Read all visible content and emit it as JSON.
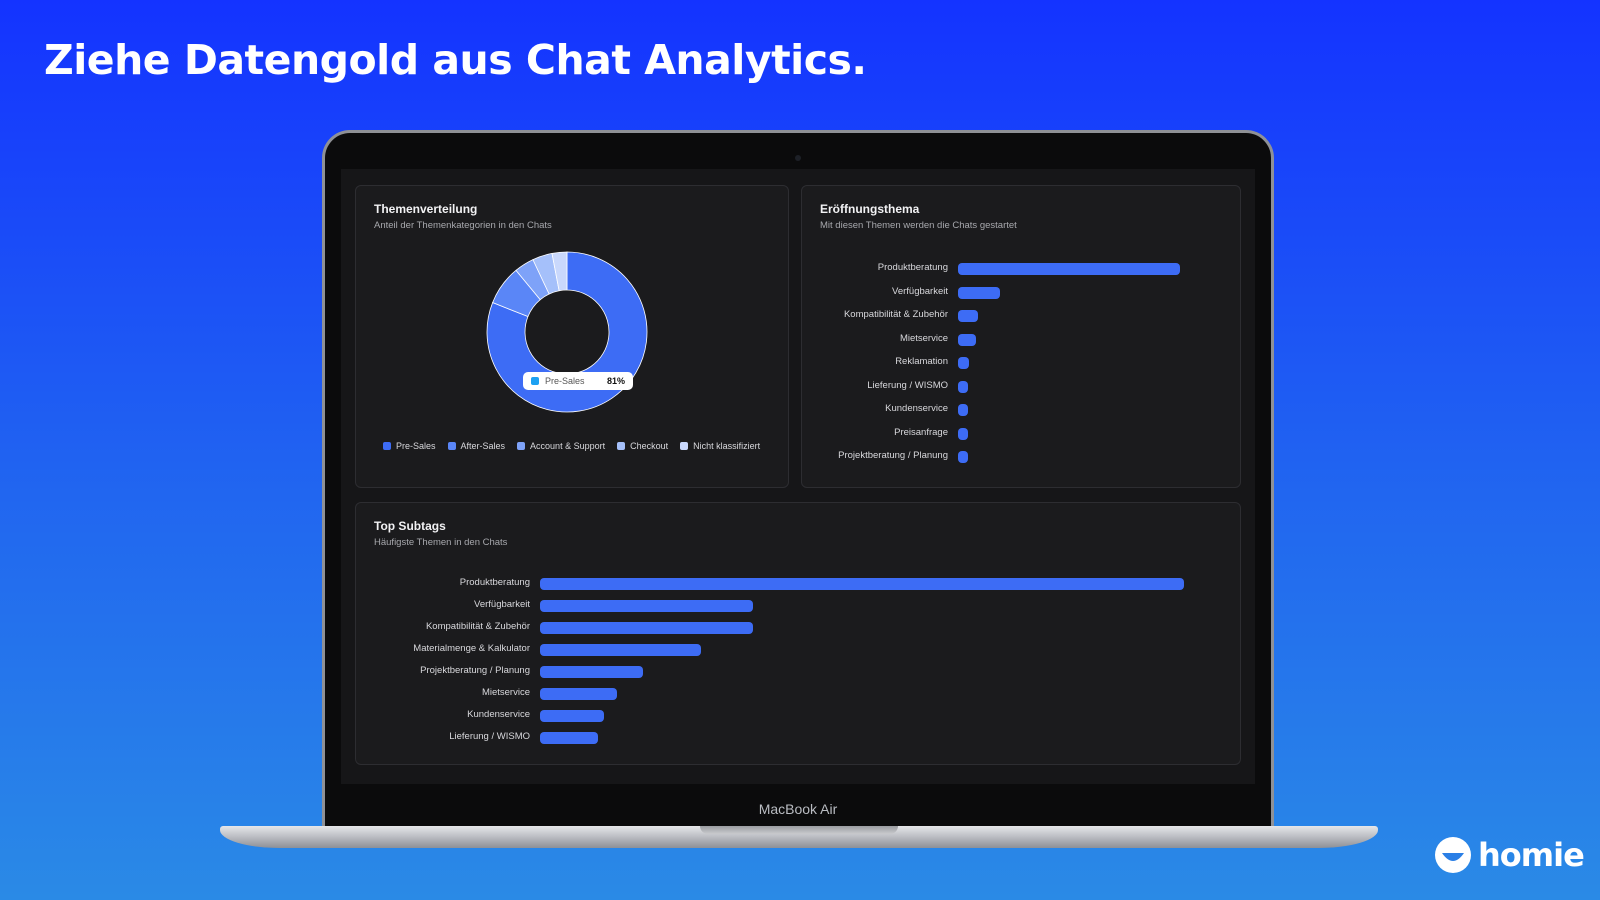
{
  "headline": "Ziehe Datengold aus Chat Analytics.",
  "device_label": "MacBook Air",
  "brand": "homie",
  "colors": {
    "bar": "#3d6cf5",
    "panel": "#1b1b1d",
    "tooltip_swatch": "#1da1f2"
  },
  "themen": {
    "title": "Themenverteilung",
    "subtitle": "Anteil der Themenkategorien in den Chats",
    "tooltip": {
      "label": "Pre-Sales",
      "value": "81%"
    },
    "legend": [
      {
        "label": "Pre-Sales",
        "color": "#3d6cf5"
      },
      {
        "label": "After-Sales",
        "color": "#5a86f7"
      },
      {
        "label": "Account & Support",
        "color": "#7ea2f8"
      },
      {
        "label": "Checkout",
        "color": "#a5c0fa"
      },
      {
        "label": "Nicht klassifiziert",
        "color": "#c9d8fc"
      }
    ]
  },
  "eroeffnung": {
    "title": "Eröffnungsthema",
    "subtitle": "Mit diesen Themen werden die Chats gestartet"
  },
  "subtags": {
    "title": "Top Subtags",
    "subtitle": "Häufigste Themen in den Chats"
  },
  "chart_data": [
    {
      "type": "pie",
      "categories": [
        "Pre-Sales",
        "After-Sales",
        "Account & Support",
        "Checkout",
        "Nicht klassifiziert"
      ],
      "values": [
        81,
        8,
        4,
        4,
        3
      ],
      "title": "Themenverteilung",
      "subtitle": "Anteil der Themenkategorien in den Chats",
      "legend": "bottom"
    },
    {
      "type": "bar",
      "orientation": "horizontal",
      "categories": [
        "Produktberatung",
        "Verfügbarkeit",
        "Kompatibilität & Zubehör",
        "Mietservice",
        "Reklamation",
        "Lieferung / WISMO",
        "Kundenservice",
        "Preisanfrage",
        "Projektberatung / Planung"
      ],
      "values": [
        100,
        19,
        9,
        8,
        5,
        4,
        4,
        4,
        4
      ],
      "title": "Eröffnungsthema",
      "subtitle": "Mit diesen Themen werden die Chats gestartet",
      "xlim": [
        0,
        100
      ]
    },
    {
      "type": "bar",
      "orientation": "horizontal",
      "categories": [
        "Produktberatung",
        "Verfügbarkeit",
        "Kompatibilität & Zubehör",
        "Materialmenge & Kalkulator",
        "Projektberatung / Planung",
        "Mietservice",
        "Kundenservice",
        "Lieferung / WISMO"
      ],
      "values": [
        100,
        33,
        33,
        25,
        16,
        12,
        10,
        9
      ],
      "title": "Top Subtags",
      "subtitle": "Häufigste Themen in den Chats",
      "xlim": [
        0,
        100
      ]
    }
  ]
}
